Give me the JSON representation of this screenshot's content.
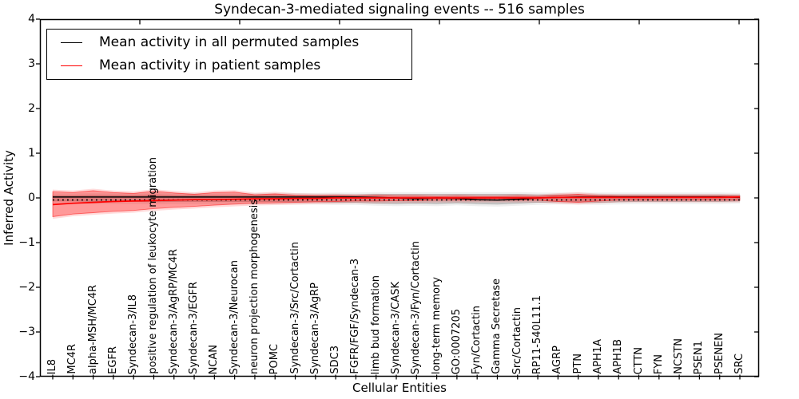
{
  "figure": {
    "title": "Syndecan-3-mediated signaling events -- 516 samples",
    "xlabel": "Cellular Entities",
    "ylabel": "Inferred Activity"
  },
  "legend": {
    "position": "upper left",
    "entries": [
      {
        "label": "Mean activity in all permuted samples",
        "color": "#000000"
      },
      {
        "label": "Mean activity in patient samples",
        "color": "#ff0000"
      }
    ]
  },
  "chart_data": {
    "type": "line",
    "title": "Syndecan-3-mediated signaling events -- 516 samples",
    "xlabel": "Cellular Entities",
    "ylabel": "Inferred Activity",
    "ylim": [
      -4,
      4
    ],
    "yticks": [
      4,
      3,
      2,
      1,
      0,
      -1,
      -2,
      -3,
      -4
    ],
    "grid": false,
    "legend_position": "upper left",
    "categories": [
      "IL8",
      "MC4R",
      "alpha-MSH/MC4R",
      "EGFR",
      "Syndecan-3/IL8",
      "positive regulation of leukocyte migration",
      "Syndecan-3/AgRP/MC4R",
      "Syndecan-3/EGFR",
      "NCAN",
      "Syndecan-3/Neurocan",
      "neuron projection morphogenesis",
      "POMC",
      "Syndecan-3/Src/Cortactin",
      "Syndecan-3/AgRP",
      "SDC3",
      "FGFR/FGF/Syndecan-3",
      "limb bud formation",
      "Syndecan-3/CASK",
      "Syndecan-3/Fyn/Cortactin",
      "long-term memory",
      "GO:0007205",
      "Fyn/Cortactin",
      "Gamma Secretase",
      "Src/Cortactin",
      "RP11-540L11.1",
      "AGRP",
      "PTN",
      "APH1A",
      "APH1B",
      "CTTN",
      "FYN",
      "NCSTN",
      "PSEN1",
      "PSENEN",
      "SRC"
    ],
    "series": [
      {
        "name": "Mean activity in all permuted samples",
        "color": "#000000",
        "style": "solid",
        "values": [
          0.02,
          0.02,
          0.02,
          0.02,
          0.02,
          0.02,
          0.02,
          0.02,
          0.02,
          0.02,
          0.02,
          0.02,
          0.02,
          0.02,
          0.02,
          0.02,
          0.01,
          0.0,
          -0.02,
          0.0,
          -0.01,
          -0.04,
          -0.05,
          -0.03,
          0.0,
          0.01,
          0.02,
          0.02,
          0.02,
          0.02,
          0.02,
          0.02,
          0.02,
          0.02,
          0.01
        ]
      },
      {
        "name": "Mean activity in patient samples",
        "color": "#ff0000",
        "style": "solid",
        "values": [
          -0.15,
          -0.12,
          -0.1,
          -0.08,
          -0.07,
          -0.06,
          -0.05,
          -0.04,
          -0.04,
          -0.03,
          -0.02,
          -0.02,
          -0.01,
          -0.01,
          0.0,
          0.0,
          0.0,
          0.0,
          0.0,
          0.0,
          0.0,
          0.0,
          0.0,
          0.0,
          0.0,
          0.01,
          0.01,
          0.01,
          0.01,
          0.01,
          0.01,
          0.01,
          0.01,
          0.01,
          0.02
        ]
      }
    ],
    "baseline": {
      "name": "zero reference",
      "style": "dotted",
      "color": "#000000",
      "value": -0.045
    },
    "bands": [
      {
        "name": "permuted samples spread",
        "color": "#808080",
        "upper": [
          0.05,
          0.05,
          0.06,
          0.06,
          0.06,
          0.07,
          0.06,
          0.06,
          0.06,
          0.06,
          0.06,
          0.06,
          0.06,
          0.06,
          0.07,
          0.07,
          0.08,
          0.08,
          0.08,
          0.08,
          0.08,
          0.08,
          0.08,
          0.08,
          0.07,
          0.07,
          0.07,
          0.07,
          0.07,
          0.07,
          0.07,
          0.07,
          0.07,
          0.07,
          0.06
        ],
        "lower": [
          -0.07,
          -0.07,
          -0.08,
          -0.08,
          -0.08,
          -0.09,
          -0.08,
          -0.08,
          -0.08,
          -0.08,
          -0.08,
          -0.08,
          -0.09,
          -0.09,
          -0.1,
          -0.1,
          -0.12,
          -0.13,
          -0.12,
          -0.13,
          -0.11,
          -0.13,
          -0.14,
          -0.12,
          -0.1,
          -0.09,
          -0.09,
          -0.1,
          -0.09,
          -0.08,
          -0.08,
          -0.08,
          -0.08,
          -0.08,
          -0.07
        ]
      },
      {
        "name": "patient samples spread",
        "color": "#ff0000",
        "upper": [
          0.14,
          0.12,
          0.16,
          0.12,
          0.1,
          0.15,
          0.11,
          0.08,
          0.12,
          0.13,
          0.07,
          0.09,
          0.06,
          0.05,
          0.05,
          0.04,
          0.05,
          0.04,
          0.04,
          0.03,
          0.04,
          0.03,
          0.03,
          0.04,
          0.03,
          0.06,
          0.08,
          0.05,
          0.04,
          0.04,
          0.04,
          0.04,
          0.04,
          0.04,
          0.04
        ],
        "lower": [
          -0.42,
          -0.36,
          -0.33,
          -0.3,
          -0.28,
          -0.24,
          -0.21,
          -0.19,
          -0.16,
          -0.14,
          -0.12,
          -0.11,
          -0.1,
          -0.09,
          -0.08,
          -0.07,
          -0.07,
          -0.06,
          -0.06,
          -0.05,
          -0.05,
          -0.05,
          -0.05,
          -0.05,
          -0.05,
          -0.08,
          -0.1,
          -0.07,
          -0.05,
          -0.05,
          -0.05,
          -0.05,
          -0.05,
          -0.05,
          -0.05
        ]
      }
    ]
  }
}
